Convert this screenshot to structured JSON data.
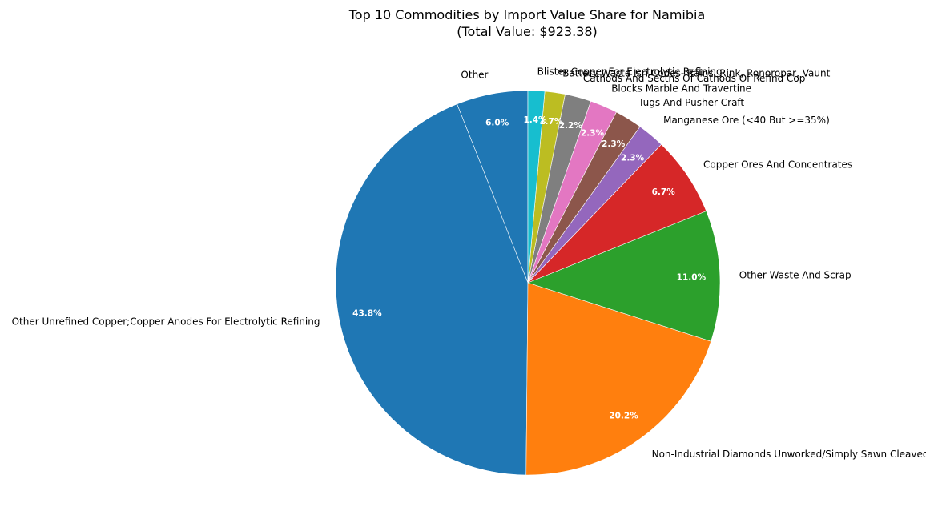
{
  "chart_data": {
    "type": "pie",
    "title": "Top 10 Commodities by Import Value Share for Namibia",
    "subtitle": "(Total Value: $923.38)",
    "start_angle_deg": 90,
    "direction": "counterclockwise",
    "slices": [
      {
        "label": "Other",
        "value": 6.0,
        "pct_text": "6.0%",
        "color": "#1f77b4"
      },
      {
        "label": "Other Unrefined Copper;Copper Anodes For Electrolytic Refining",
        "value": 43.8,
        "pct_text": "43.8%",
        "color": "#1f77b4"
      },
      {
        "label": "Non-Industrial Diamonds Unworked/Simply Sawn Cleaved Or Bruted",
        "value": 20.2,
        "pct_text": "20.2%",
        "color": "#ff7f0e"
      },
      {
        "label": "Other Waste And Scrap",
        "value": 11.0,
        "pct_text": "11.0%",
        "color": "#2ca02c"
      },
      {
        "label": "Copper Ores And Concentrates",
        "value": 6.7,
        "pct_text": "6.7%",
        "color": "#d62728"
      },
      {
        "label": "Manganese Ore (<40 But >=35%)",
        "value": 2.3,
        "pct_text": "2.3%",
        "color": "#9467bd"
      },
      {
        "label": "Tugs And Pusher Craft",
        "value": 2.3,
        "pct_text": "2.3%",
        "color": "#8c564b"
      },
      {
        "label": "Blocks Marble And Travertine",
        "value": 2.3,
        "pct_text": "2.3%",
        "color": "#e377c2"
      },
      {
        "label": "Cathods And Sectns Of Cathods Of Refind Cop",
        "value": 2.2,
        "pct_text": "2.2%",
        "color": "#7f7f7f"
      },
      {
        "label": "*Battery Waste Isri Codes- Rains, Rink, Ronoropar, Vaunt",
        "value": 1.7,
        "pct_text": "1.7%",
        "color": "#bcbd22"
      },
      {
        "label": "Blister Copper For Electrolytic Refining",
        "value": 1.4,
        "pct_text": "1.4%",
        "color": "#17becf"
      }
    ]
  }
}
